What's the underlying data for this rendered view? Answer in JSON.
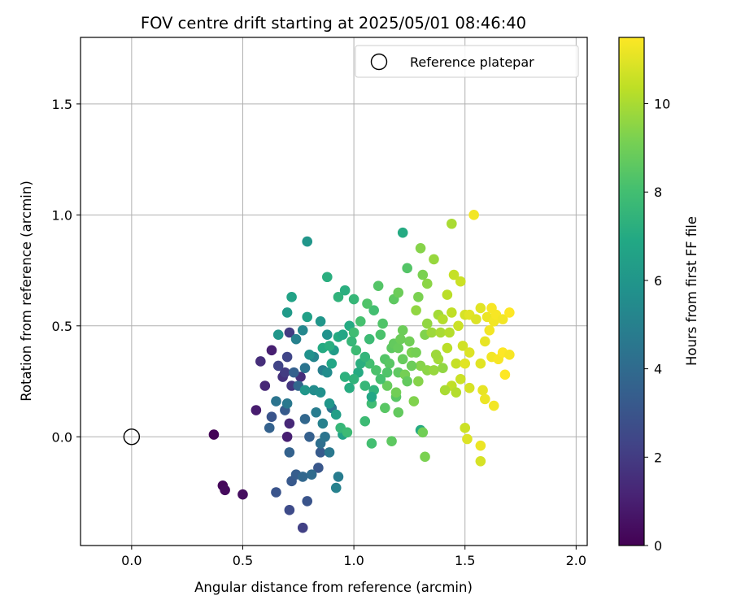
{
  "chart_data": {
    "type": "scatter",
    "title": "FOV centre drift starting at 2025/05/01 08:46:40",
    "xlabel": "Angular distance from reference (arcmin)",
    "ylabel": "Rotation from reference (arcmin)",
    "xlim": [
      -0.23,
      2.05
    ],
    "ylim": [
      -0.49,
      1.8
    ],
    "xticks": [
      0.0,
      0.5,
      1.0,
      1.5,
      2.0
    ],
    "xtick_labels": [
      "0.0",
      "0.5",
      "1.0",
      "1.5",
      "2.0"
    ],
    "yticks": [
      0.0,
      0.5,
      1.0,
      1.5
    ],
    "ytick_labels": [
      "0.0",
      "0.5",
      "1.0",
      "1.5"
    ],
    "grid": true,
    "legend": {
      "position": "top-right",
      "label": "Reference platepar"
    },
    "reference_point": {
      "x": 0.0,
      "y": 0.0
    },
    "colorbar": {
      "label": "Hours from first FF file",
      "range": [
        0,
        11.5
      ],
      "ticks": [
        0,
        2,
        4,
        6,
        8,
        10
      ],
      "tick_labels": [
        "0",
        "2",
        "4",
        "6",
        "8",
        "10"
      ],
      "colormap": "viridis"
    },
    "colormap_stops": [
      "#440154",
      "#482475",
      "#414487",
      "#355f8d",
      "#2a788e",
      "#21918c",
      "#22a884",
      "#44bf70",
      "#7ad151",
      "#bddf26",
      "#fde725"
    ],
    "series": [
      {
        "points": [
          [
            0.37,
            0.01,
            0.1
          ],
          [
            0.41,
            -0.22,
            0.2
          ],
          [
            0.42,
            -0.24,
            0.3
          ],
          [
            0.5,
            -0.26,
            0.4
          ],
          [
            0.56,
            0.12,
            0.9
          ],
          [
            0.63,
            0.39,
            1.0
          ],
          [
            0.6,
            0.23,
            1.3
          ],
          [
            0.7,
            0.0,
            1.0
          ],
          [
            0.71,
            0.06,
            1.3
          ],
          [
            0.58,
            0.34,
            1.5
          ],
          [
            0.68,
            0.27,
            1.6
          ],
          [
            0.72,
            0.23,
            1.8
          ],
          [
            0.69,
            0.29,
            2.0
          ],
          [
            0.66,
            0.32,
            2.3
          ],
          [
            0.7,
            0.36,
            2.4
          ],
          [
            0.76,
            0.27,
            1.5
          ],
          [
            0.71,
            0.47,
            2.0
          ],
          [
            0.65,
            -0.25,
            3.0
          ],
          [
            0.71,
            -0.33,
            2.6
          ],
          [
            0.77,
            -0.41,
            2.2
          ],
          [
            0.72,
            -0.2,
            3.2
          ],
          [
            0.74,
            -0.17,
            3.4
          ],
          [
            0.71,
            -0.07,
            3.6
          ],
          [
            0.77,
            -0.18,
            3.8
          ],
          [
            0.79,
            -0.29,
            3.0
          ],
          [
            0.63,
            0.09,
            3.0
          ],
          [
            0.69,
            0.12,
            3.3
          ],
          [
            0.62,
            0.04,
            3.6
          ],
          [
            0.73,
            0.29,
            3.5
          ],
          [
            0.75,
            0.23,
            3.8
          ],
          [
            0.78,
            0.08,
            3.8
          ],
          [
            0.8,
            0.0,
            3.5
          ],
          [
            0.85,
            -0.07,
            3.3
          ],
          [
            0.84,
            -0.14,
            3.1
          ],
          [
            0.81,
            -0.17,
            4.0
          ],
          [
            0.85,
            -0.03,
            4.2
          ],
          [
            0.87,
            0.0,
            4.4
          ],
          [
            0.89,
            -0.07,
            4.6
          ],
          [
            0.93,
            -0.18,
            4.8
          ],
          [
            0.92,
            -0.23,
            5.0
          ],
          [
            0.65,
            0.16,
            4.4
          ],
          [
            0.7,
            0.15,
            4.6
          ],
          [
            0.83,
            0.11,
            4.8
          ],
          [
            0.86,
            0.06,
            5.0
          ],
          [
            0.9,
            0.13,
            4.5
          ],
          [
            0.78,
            0.31,
            4.4
          ],
          [
            0.82,
            0.36,
            5.2
          ],
          [
            0.86,
            0.3,
            4.9
          ],
          [
            0.88,
            0.29,
            5.5
          ],
          [
            0.74,
            0.44,
            5.0
          ],
          [
            0.77,
            0.48,
            5.3
          ],
          [
            0.8,
            0.37,
            5.8
          ],
          [
            0.66,
            0.46,
            6.0
          ],
          [
            0.7,
            0.56,
            6.2
          ],
          [
            0.72,
            0.63,
            6.6
          ],
          [
            0.79,
            0.54,
            6.5
          ],
          [
            0.85,
            0.52,
            6.0
          ],
          [
            0.88,
            0.46,
            5.8
          ],
          [
            0.91,
            0.39,
            6.3
          ],
          [
            0.79,
            0.88,
            6.0
          ],
          [
            0.82,
            0.21,
            5.5
          ],
          [
            0.85,
            0.2,
            5.7
          ],
          [
            0.89,
            0.15,
            6.0
          ],
          [
            0.92,
            0.1,
            6.4
          ],
          [
            0.95,
            0.01,
            6.6
          ],
          [
            0.78,
            0.21,
            6.0
          ],
          [
            0.9,
            0.33,
            6.8
          ],
          [
            0.93,
            0.45,
            7.0
          ],
          [
            0.95,
            0.46,
            6.8
          ],
          [
            0.98,
            0.5,
            7.0
          ],
          [
            0.88,
            0.72,
            7.2
          ],
          [
            0.93,
            0.63,
            7.4
          ],
          [
            0.96,
            0.66,
            7.2
          ],
          [
            1.0,
            0.62,
            7.6
          ],
          [
            0.86,
            0.4,
            7.0
          ],
          [
            0.89,
            0.41,
            7.2
          ],
          [
            1.02,
            0.29,
            7.0
          ],
          [
            1.0,
            0.26,
            7.4
          ],
          [
            1.05,
            0.23,
            7.6
          ],
          [
            1.09,
            0.21,
            7.4
          ],
          [
            0.94,
            0.04,
            7.6
          ],
          [
            0.97,
            0.02,
            7.8
          ],
          [
            1.05,
            0.07,
            7.8
          ],
          [
            1.08,
            0.15,
            7.9
          ],
          [
            1.08,
            0.18,
            6.8
          ],
          [
            1.07,
            0.44,
            7.8
          ],
          [
            1.09,
            0.57,
            8.0
          ],
          [
            1.12,
            0.46,
            8.2
          ],
          [
            1.11,
            0.68,
            8.4
          ],
          [
            1.06,
            0.6,
            8.3
          ],
          [
            1.03,
            0.52,
            8.1
          ],
          [
            1.0,
            0.47,
            7.9
          ],
          [
            1.07,
            0.33,
            8.0
          ],
          [
            1.1,
            0.3,
            8.2
          ],
          [
            1.14,
            0.35,
            8.4
          ],
          [
            1.08,
            -0.03,
            8.0
          ],
          [
            1.14,
            0.13,
            8.5
          ],
          [
            1.17,
            -0.02,
            8.6
          ],
          [
            1.2,
            0.11,
            8.7
          ],
          [
            1.19,
            0.18,
            8.5
          ],
          [
            1.15,
            0.23,
            8.8
          ],
          [
            1.19,
            0.2,
            9.0
          ],
          [
            1.2,
            0.29,
            8.6
          ],
          [
            1.22,
            0.35,
            8.8
          ],
          [
            1.22,
            0.92,
            7.0
          ],
          [
            1.24,
            0.76,
            8.4
          ],
          [
            1.18,
            0.62,
            8.6
          ],
          [
            1.2,
            0.65,
            8.9
          ],
          [
            1.22,
            0.48,
            8.9
          ],
          [
            1.25,
            0.43,
            9.0
          ],
          [
            1.26,
            0.38,
            9.2
          ],
          [
            1.23,
            0.28,
            9.1
          ],
          [
            1.27,
            0.16,
            9.3
          ],
          [
            1.3,
            0.03,
            7.0
          ],
          [
            1.31,
            0.02,
            9.0
          ],
          [
            1.32,
            -0.09,
            9.2
          ],
          [
            1.3,
            0.32,
            9.4
          ],
          [
            1.33,
            0.3,
            9.5
          ],
          [
            1.32,
            0.46,
            9.3
          ],
          [
            1.33,
            0.51,
            9.6
          ],
          [
            1.35,
            0.47,
            9.8
          ],
          [
            1.36,
            0.3,
            9.7
          ],
          [
            1.38,
            0.35,
            9.9
          ],
          [
            1.4,
            0.31,
            9.6
          ],
          [
            1.31,
            0.73,
            9.2
          ],
          [
            1.33,
            0.69,
            9.5
          ],
          [
            1.36,
            0.8,
            9.7
          ],
          [
            1.3,
            0.85,
            9.4
          ],
          [
            1.28,
            0.57,
            9.6
          ],
          [
            1.38,
            0.55,
            9.9
          ],
          [
            1.44,
            0.96,
            10.0
          ],
          [
            1.42,
            0.64,
            10.3
          ],
          [
            1.45,
            0.73,
            10.5
          ],
          [
            1.48,
            0.7,
            10.6
          ],
          [
            1.44,
            0.56,
            10.4
          ],
          [
            1.47,
            0.5,
            10.6
          ],
          [
            1.5,
            0.55,
            10.8
          ],
          [
            1.52,
            0.55,
            11.0
          ],
          [
            1.55,
            0.53,
            10.9
          ],
          [
            1.4,
            0.53,
            10.2
          ],
          [
            1.42,
            0.4,
            10.3
          ],
          [
            1.46,
            0.33,
            10.5
          ],
          [
            1.49,
            0.41,
            10.7
          ],
          [
            1.52,
            0.38,
            10.9
          ],
          [
            1.5,
            0.33,
            11.0
          ],
          [
            1.44,
            0.23,
            10.4
          ],
          [
            1.48,
            0.26,
            10.6
          ],
          [
            1.52,
            0.22,
            10.8
          ],
          [
            1.46,
            0.2,
            10.2
          ],
          [
            1.41,
            0.21,
            10.0
          ],
          [
            1.5,
            0.04,
            10.6
          ],
          [
            1.51,
            -0.01,
            10.9
          ],
          [
            1.57,
            -0.04,
            11.2
          ],
          [
            1.57,
            -0.11,
            10.8
          ],
          [
            1.54,
            1.0,
            11.3
          ],
          [
            1.57,
            0.58,
            11.0
          ],
          [
            1.6,
            0.54,
            11.2
          ],
          [
            1.62,
            0.58,
            11.4
          ],
          [
            1.63,
            0.52,
            11.3
          ],
          [
            1.64,
            0.55,
            11.4
          ],
          [
            1.67,
            0.53,
            11.3
          ],
          [
            1.7,
            0.56,
            11.5
          ],
          [
            1.59,
            0.43,
            11.1
          ],
          [
            1.61,
            0.48,
            11.3
          ],
          [
            1.62,
            0.36,
            11.3
          ],
          [
            1.65,
            0.35,
            11.4
          ],
          [
            1.67,
            0.38,
            11.5
          ],
          [
            1.7,
            0.37,
            11.4
          ],
          [
            1.68,
            0.28,
            11.5
          ],
          [
            1.58,
            0.21,
            11.1
          ],
          [
            1.59,
            0.17,
            11.2
          ],
          [
            1.63,
            0.14,
            11.3
          ],
          [
            1.57,
            0.33,
            11.0
          ],
          [
            1.13,
            0.51,
            8.3
          ],
          [
            1.17,
            0.4,
            8.6
          ],
          [
            1.16,
            0.33,
            8.5
          ],
          [
            1.24,
            0.25,
            8.7
          ],
          [
            1.26,
            0.32,
            8.9
          ],
          [
            1.28,
            0.38,
            9.1
          ],
          [
            1.03,
            0.33,
            7.2
          ],
          [
            1.05,
            0.36,
            7.5
          ],
          [
            0.99,
            0.43,
            7.6
          ],
          [
            1.01,
            0.39,
            7.8
          ],
          [
            0.96,
            0.27,
            7.3
          ],
          [
            0.98,
            0.22,
            7.1
          ],
          [
            1.12,
            0.26,
            8.1
          ],
          [
            1.15,
            0.29,
            8.3
          ],
          [
            1.18,
            0.42,
            8.7
          ],
          [
            1.2,
            0.4,
            8.8
          ],
          [
            1.21,
            0.44,
            8.9
          ],
          [
            1.29,
            0.63,
            9.2
          ],
          [
            1.29,
            0.25,
            9.4
          ],
          [
            1.37,
            0.37,
            9.8
          ],
          [
            1.39,
            0.47,
            10.0
          ],
          [
            1.43,
            0.47,
            10.2
          ]
        ]
      }
    ]
  }
}
